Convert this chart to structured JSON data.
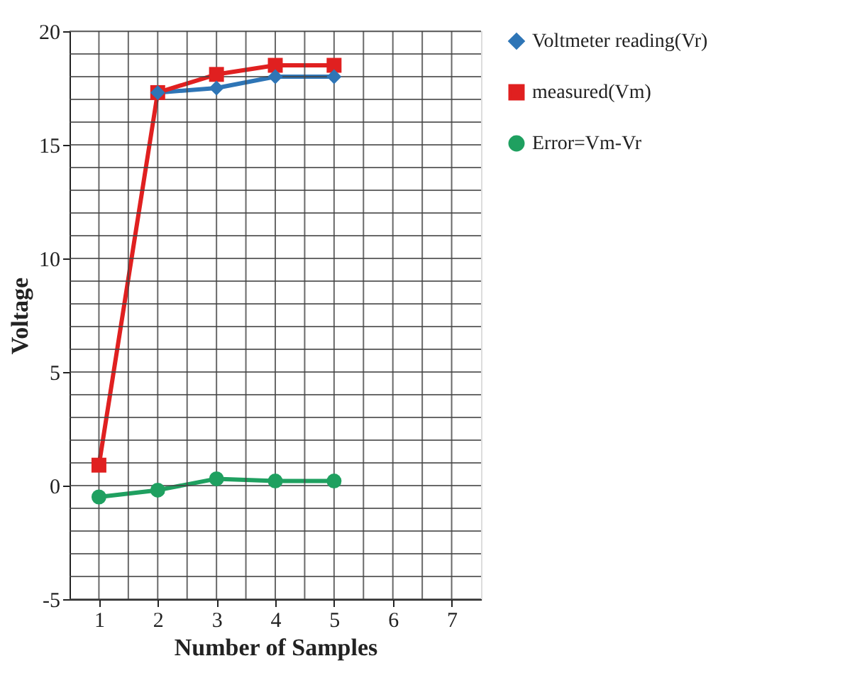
{
  "chart_data": {
    "type": "line",
    "xlabel": "Number of Samples",
    "ylabel": "Voltage",
    "x": [
      1,
      2,
      3,
      4,
      5
    ],
    "xlim": [
      0.5,
      7.5
    ],
    "xticks": [
      1,
      {
        "value": 1.5,
        "label": null
      },
      2,
      {
        "value": 2.5,
        "label": null
      },
      3,
      {
        "value": 3.5,
        "label": null
      },
      4,
      {
        "value": 4.5,
        "label": null
      },
      5,
      {
        "value": 5.5,
        "label": null
      },
      6,
      {
        "value": 6.5,
        "label": null
      },
      7
    ],
    "ylim": [
      -5,
      20
    ],
    "yticks": [
      -5,
      {
        "value": -4,
        "label": null
      },
      {
        "value": -3,
        "label": null
      },
      {
        "value": -2,
        "label": null
      },
      {
        "value": -1,
        "label": null
      },
      0,
      {
        "value": 1,
        "label": null
      },
      {
        "value": 2,
        "label": null
      },
      {
        "value": 3,
        "label": null
      },
      {
        "value": 4,
        "label": null
      },
      5,
      {
        "value": 6,
        "label": null
      },
      {
        "value": 7,
        "label": null
      },
      {
        "value": 8,
        "label": null
      },
      {
        "value": 9,
        "label": null
      },
      10,
      {
        "value": 11,
        "label": null
      },
      {
        "value": 12,
        "label": null
      },
      {
        "value": 13,
        "label": null
      },
      {
        "value": 14,
        "label": null
      },
      15,
      {
        "value": 16,
        "label": null
      },
      {
        "value": 17,
        "label": null
      },
      {
        "value": 18,
        "label": null
      },
      {
        "value": 19,
        "label": null
      },
      20
    ],
    "grid": true,
    "legend": "right",
    "line_style": "solid",
    "series": [
      {
        "name": "Voltmeter reading(Vr)",
        "color": "#2e75b6",
        "marker": "diamond",
        "values": [
          null,
          17.3,
          17.5,
          18.0,
          18.0
        ]
      },
      {
        "name": "measured(Vm)",
        "color": "#e02020",
        "marker": "square",
        "values": [
          0.9,
          17.3,
          18.1,
          18.5,
          18.5
        ]
      },
      {
        "name": "Error=Vm-Vr",
        "color": "#1fa060",
        "marker": "circle",
        "values": [
          -0.5,
          -0.2,
          0.3,
          0.2,
          0.2
        ]
      }
    ]
  }
}
